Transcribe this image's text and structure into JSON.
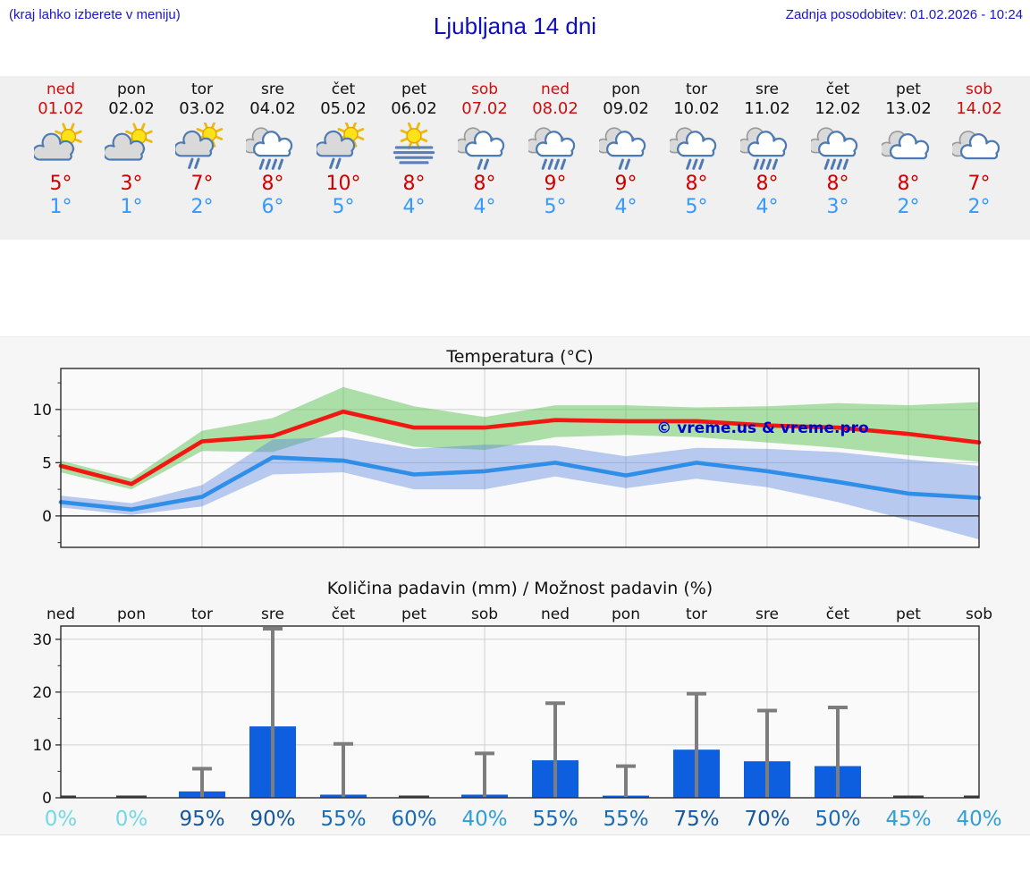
{
  "header": {
    "location_hint": "(kraj lahko izberete v meniju)",
    "title": "Ljubljana 14 dni",
    "last_updated": "Zadnja posodobitev: 01.02.2026 - 10:24"
  },
  "days": [
    {
      "name": "ned",
      "date": "01.02",
      "weekend": true,
      "icon": "sun-cloud",
      "temp_max": "5°",
      "temp_min": "1°"
    },
    {
      "name": "pon",
      "date": "02.02",
      "weekend": false,
      "icon": "sun-cloud",
      "temp_max": "3°",
      "temp_min": "1°"
    },
    {
      "name": "tor",
      "date": "03.02",
      "weekend": false,
      "icon": "sun-cloud-rain-2",
      "temp_max": "7°",
      "temp_min": "2°"
    },
    {
      "name": "sre",
      "date": "04.02",
      "weekend": false,
      "icon": "cloud-rain-4",
      "temp_max": "8°",
      "temp_min": "6°"
    },
    {
      "name": "čet",
      "date": "05.02",
      "weekend": false,
      "icon": "sun-cloud-rain-2",
      "temp_max": "10°",
      "temp_min": "5°"
    },
    {
      "name": "pet",
      "date": "06.02",
      "weekend": false,
      "icon": "sun-fog",
      "temp_max": "8°",
      "temp_min": "4°"
    },
    {
      "name": "sob",
      "date": "07.02",
      "weekend": true,
      "icon": "cloud-rain-2",
      "temp_max": "8°",
      "temp_min": "4°"
    },
    {
      "name": "ned",
      "date": "08.02",
      "weekend": true,
      "icon": "cloud-rain-4",
      "temp_max": "9°",
      "temp_min": "5°"
    },
    {
      "name": "pon",
      "date": "09.02",
      "weekend": false,
      "icon": "cloud-rain-2",
      "temp_max": "9°",
      "temp_min": "4°"
    },
    {
      "name": "tor",
      "date": "10.02",
      "weekend": false,
      "icon": "cloud-rain-3",
      "temp_max": "8°",
      "temp_min": "5°"
    },
    {
      "name": "sre",
      "date": "11.02",
      "weekend": false,
      "icon": "cloud-rain-4",
      "temp_max": "8°",
      "temp_min": "4°"
    },
    {
      "name": "čet",
      "date": "12.02",
      "weekend": false,
      "icon": "cloud-rain-4",
      "temp_max": "8°",
      "temp_min": "3°"
    },
    {
      "name": "pet",
      "date": "13.02",
      "weekend": false,
      "icon": "cloudy",
      "temp_max": "8°",
      "temp_min": "2°"
    },
    {
      "name": "sob",
      "date": "14.02",
      "weekend": true,
      "icon": "cloudy",
      "temp_max": "7°",
      "temp_min": "2°"
    }
  ],
  "chart_data": [
    {
      "type": "line",
      "title": "Temperatura (°C)",
      "x_labels": [
        "ned",
        "pon",
        "tor",
        "sre",
        "čet",
        "pet",
        "sob",
        "ned",
        "pon",
        "tor",
        "sre",
        "čet",
        "pet",
        "sob"
      ],
      "ylim": [
        -2.95,
        13.85
      ],
      "yticks": [
        0,
        5,
        10
      ],
      "ytick_labels": [
        "0",
        "5",
        "10"
      ],
      "minor_yticks": [
        -2.5,
        2.5,
        7.5,
        12.5
      ],
      "grid_day_indices": [
        2,
        4,
        6,
        8,
        10,
        12
      ],
      "series": [
        {
          "name": "max-temperature",
          "color": "#f01810",
          "values": [
            4.7,
            3.0,
            7.0,
            7.5,
            9.8,
            8.3,
            8.3,
            9.0,
            8.9,
            8.9,
            8.5,
            8.3,
            7.7,
            6.9
          ]
        },
        {
          "name": "min-temperature",
          "color": "#2e8ee8",
          "values": [
            1.3,
            0.6,
            1.8,
            5.5,
            5.2,
            3.9,
            4.2,
            5.0,
            3.8,
            5.0,
            4.2,
            3.2,
            2.1,
            1.7
          ]
        }
      ],
      "bands": [
        {
          "name": "max-range",
          "color": "#55c24e",
          "opacity": 0.48,
          "upper": [
            5.2,
            3.5,
            8.0,
            9.2,
            12.1,
            10.3,
            9.3,
            10.4,
            10.4,
            10.2,
            10.3,
            10.6,
            10.4,
            10.7
          ],
          "lower": [
            4.1,
            2.5,
            6.1,
            6.0,
            8.1,
            6.5,
            6.2,
            7.4,
            7.6,
            7.4,
            6.9,
            6.4,
            5.7,
            5.1
          ]
        },
        {
          "name": "min-range",
          "color": "#5b86de",
          "opacity": 0.42,
          "upper": [
            1.9,
            1.2,
            2.9,
            7.2,
            7.4,
            6.3,
            6.7,
            6.6,
            5.6,
            6.4,
            6.3,
            6.0,
            5.3,
            4.7
          ],
          "lower": [
            0.8,
            0.1,
            0.9,
            3.9,
            4.1,
            2.5,
            2.5,
            3.7,
            2.6,
            3.5,
            2.7,
            1.3,
            -0.4,
            -2.2
          ]
        }
      ],
      "watermark": "© vreme.us & vreme.pro"
    },
    {
      "type": "bar",
      "title": "Količina padavin (mm) / Možnost padavin (%)",
      "categories": [
        "ned",
        "pon",
        "tor",
        "sre",
        "čet",
        "pet",
        "sob",
        "ned",
        "pon",
        "tor",
        "sre",
        "čet",
        "pet",
        "sob"
      ],
      "values": [
        0,
        0,
        1.2,
        13.5,
        0.6,
        0,
        0.6,
        7.1,
        0.4,
        9.1,
        6.9,
        6.0,
        0,
        0
      ],
      "whisker_max": [
        0,
        0,
        5.5,
        32.0,
        10.2,
        0,
        8.4,
        17.9,
        6.0,
        19.7,
        16.5,
        17.1,
        0,
        0
      ],
      "percents": [
        0,
        0,
        95,
        90,
        55,
        60,
        40,
        55,
        55,
        75,
        70,
        50,
        45,
        40
      ],
      "percent_labels": [
        "0%",
        "0%",
        "95%",
        "90%",
        "55%",
        "60%",
        "40%",
        "55%",
        "55%",
        "75%",
        "70%",
        "50%",
        "45%",
        "40%"
      ],
      "ylim": [
        0,
        32.5
      ],
      "yticks": [
        0,
        10,
        20,
        30
      ],
      "ytick_labels": [
        "0",
        "10",
        "20",
        "30"
      ],
      "minor_yticks": [
        5,
        15,
        25
      ],
      "grid_day_indices": [
        2,
        4,
        6,
        8,
        10,
        12
      ],
      "bar_color": "#0d5fe0",
      "whisker_color": "#7d7d7d",
      "zero_mark_color": "#3c3c3c"
    }
  ],
  "theme": {
    "strip_bg": "#f0f0f0",
    "chart_band_bg": "#f6f6f6",
    "plot_bg": "#fafafa",
    "grid_color": "#cfcfcf",
    "frame_color": "#2b2b2b",
    "weekend_color": "#cc0e0e",
    "temp_max_color": "#cc0000",
    "temp_min_color": "#3399ff",
    "header_blue": "#1a16cf",
    "watermark_color": "#0000cd",
    "percent_color_zero": "#74d8e4",
    "percent_color_low": "#2f9fd6",
    "percent_color_mid": "#1a6cb4",
    "percent_color_high": "#14579f"
  }
}
